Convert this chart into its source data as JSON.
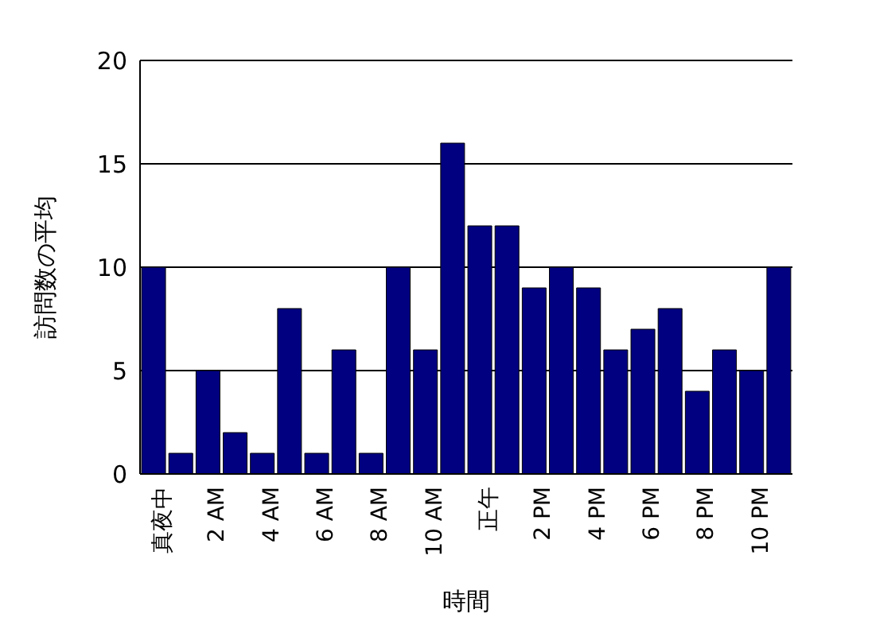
{
  "chart_data": {
    "type": "bar",
    "xlabel": "時間",
    "ylabel": "訪問数の平均",
    "categories": [
      "真夜中",
      null,
      "2 AM",
      null,
      "4 AM",
      null,
      "6 AM",
      null,
      "8 AM",
      null,
      "10 AM",
      null,
      "正午",
      null,
      "2 PM",
      null,
      "4 PM",
      null,
      "6 PM",
      null,
      "8 PM",
      null,
      "10 PM",
      null
    ],
    "values": [
      10,
      1,
      5,
      2,
      1,
      8,
      1,
      6,
      1,
      10,
      6,
      16,
      12,
      12,
      9,
      10,
      9,
      6,
      7,
      8,
      4,
      6,
      5,
      10
    ],
    "color": "#000080",
    "ylim": [
      0,
      20
    ],
    "yticks": [
      0,
      5,
      10,
      15,
      20
    ],
    "grid": "y"
  }
}
